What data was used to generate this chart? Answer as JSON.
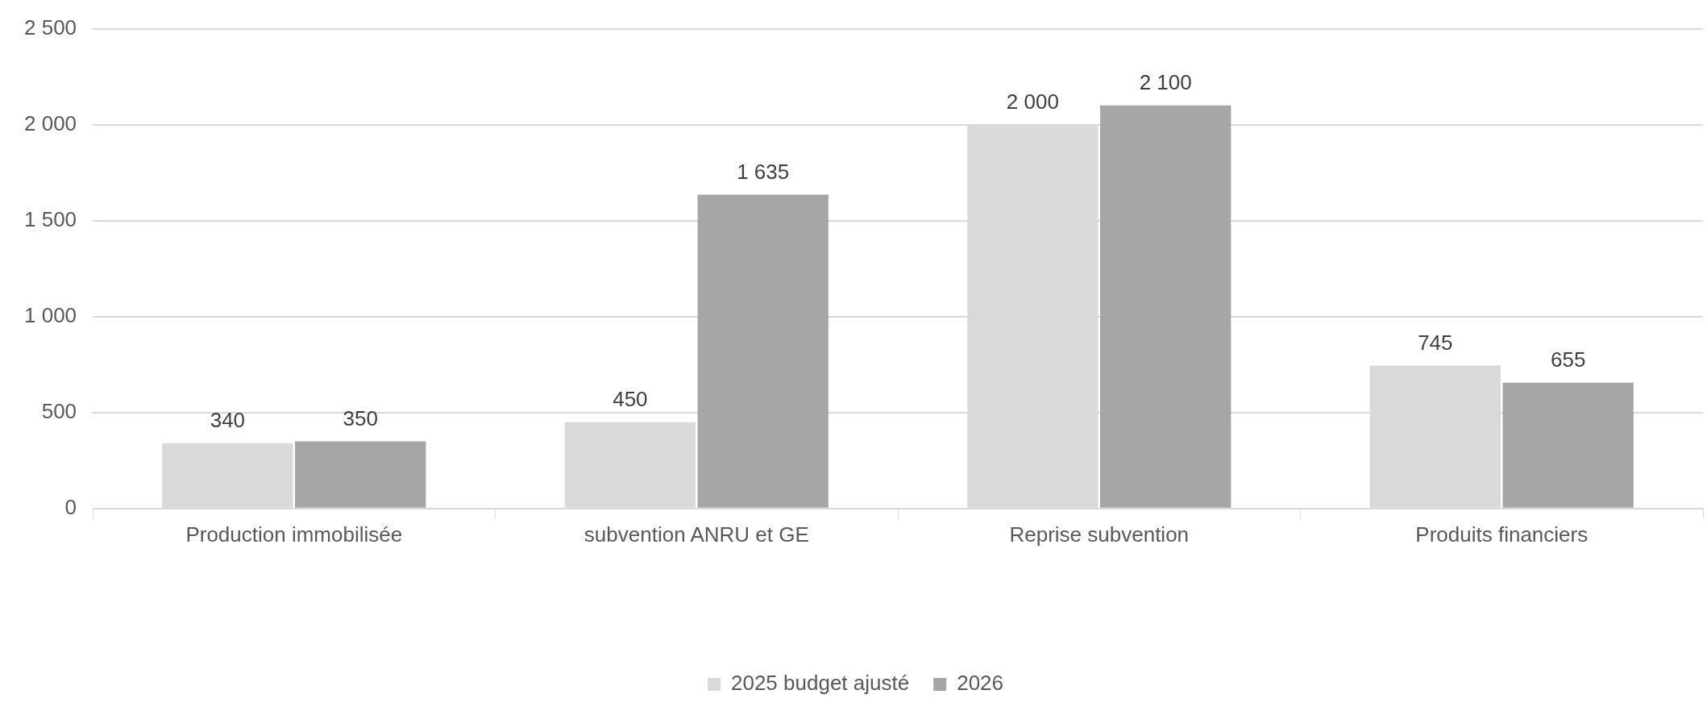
{
  "chart_data": {
    "type": "bar",
    "categories": [
      "Production immobilisée",
      "subvention ANRU et GE",
      "Reprise subvention",
      "Produits financiers"
    ],
    "series": [
      {
        "name": "2025 budget ajusté",
        "color": "#d9d9d9",
        "values": [
          340,
          450,
          2000,
          745
        ],
        "value_labels": [
          "340",
          "450",
          "2 000",
          "745"
        ]
      },
      {
        "name": "2026",
        "color": "#a6a6a6",
        "values": [
          350,
          1635,
          2100,
          655
        ],
        "value_labels": [
          "350",
          "1 635",
          "2 100",
          "655"
        ]
      }
    ],
    "ylim": [
      0,
      2500
    ],
    "yticks": [
      {
        "value": 0,
        "label": "0"
      },
      {
        "value": 500,
        "label": "500"
      },
      {
        "value": 1000,
        "label": "1 000"
      },
      {
        "value": 1500,
        "label": "1 500"
      },
      {
        "value": 2000,
        "label": "2 000"
      },
      {
        "value": 2500,
        "label": "2 500"
      }
    ],
    "grid": "y",
    "legend": "bottom"
  }
}
